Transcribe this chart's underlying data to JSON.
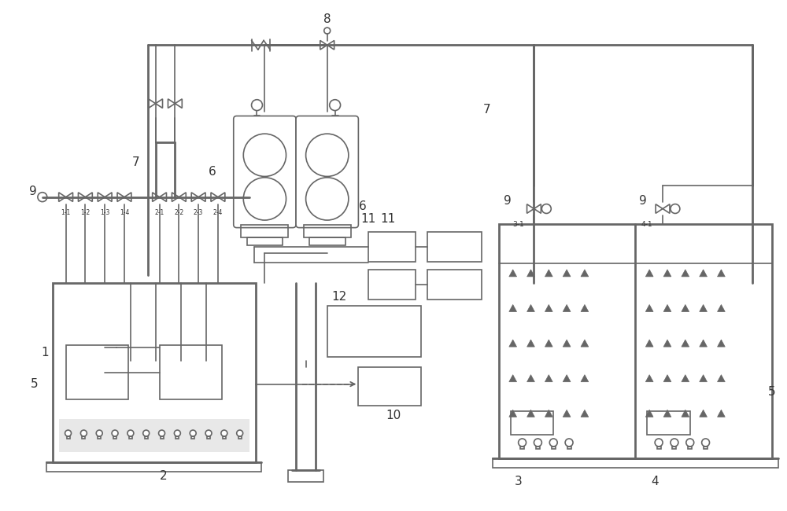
{
  "bg_color": "#ffffff",
  "lc": "#666666",
  "lw": 1.2,
  "tlw": 2.0
}
